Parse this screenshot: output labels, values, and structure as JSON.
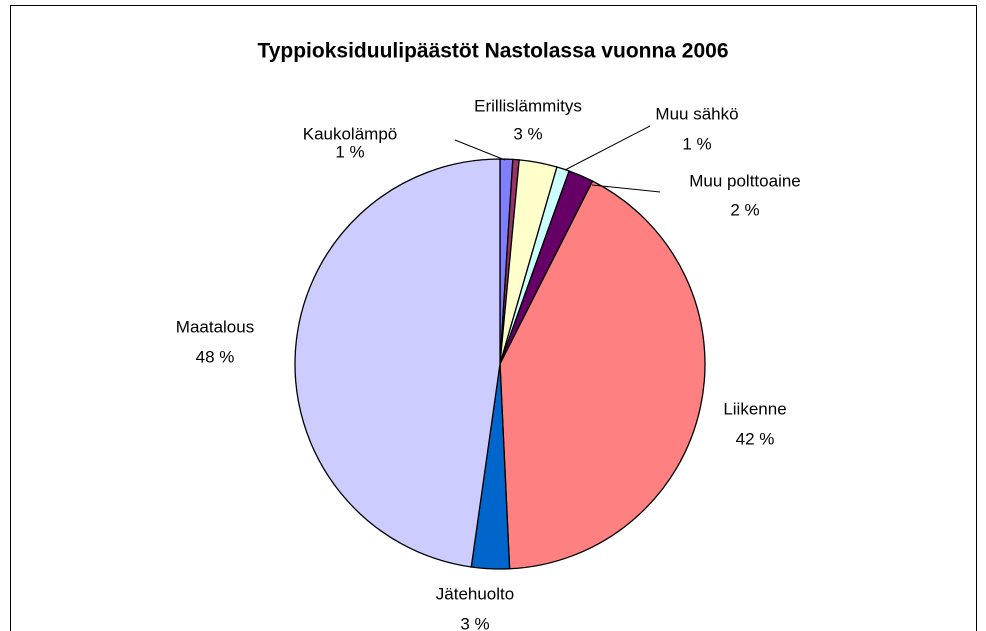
{
  "chart_data": {
    "type": "pie",
    "title": "Typpioksiduulipäästöt Nastolassa vuonna 2006",
    "categories": [
      "Kaukolämpö",
      null,
      "Erillislämmitys",
      "Muu sähkö",
      "Muu polttoaine",
      "Liikenne",
      "Jätehuolto",
      "Maatalous"
    ],
    "values": [
      1,
      0.5,
      3,
      1,
      2,
      42,
      3,
      48
    ],
    "value_labels": [
      "1 %",
      null,
      "3 %",
      "1 %",
      "2 %",
      "42 %",
      "3 %",
      "48 %"
    ],
    "colors": [
      "#8080ff",
      "#993366",
      "#ffffcc",
      "#ccffff",
      "#660066",
      "#ff8080",
      "#0066cc",
      "#ccccff"
    ]
  }
}
